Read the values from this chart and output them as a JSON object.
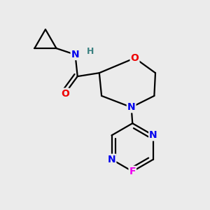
{
  "bg_color": "#ebebeb",
  "bond_color": "#000000",
  "bond_width": 1.6,
  "atom_colors": {
    "N": "#0000ee",
    "O": "#ee0000",
    "F": "#ee00ee",
    "C": "#000000",
    "H": "#3a8080"
  },
  "font_size": 10,
  "fig_size": [
    3.0,
    3.0
  ],
  "dpi": 100
}
